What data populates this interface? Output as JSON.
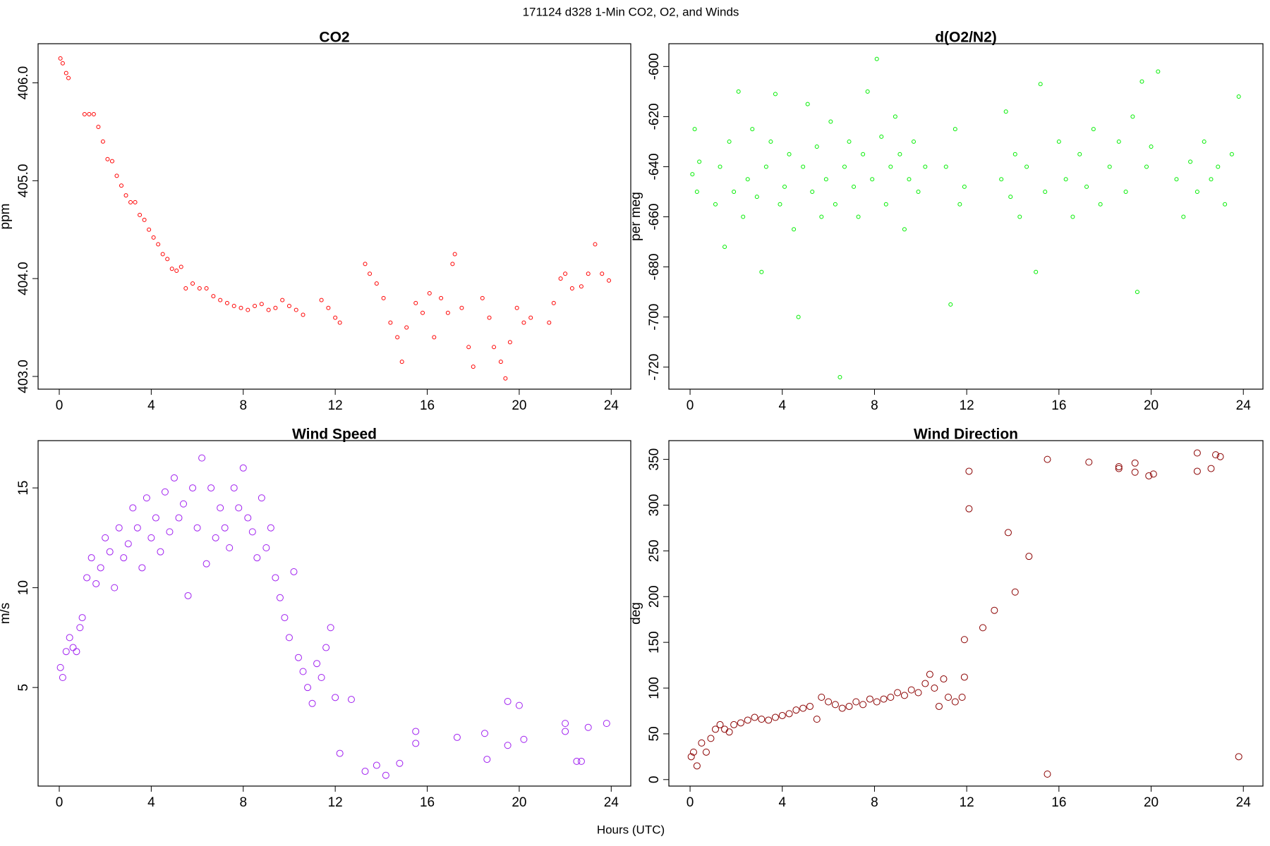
{
  "title": "171124   d328   1-Min CO2, O2, and Winds",
  "xlabel": "Hours (UTC)",
  "chart_data": [
    {
      "type": "scatter",
      "title": "CO2",
      "ylabel": "ppm",
      "color": "#ff0000",
      "xlim": [
        -0.92,
        24.85
      ],
      "xticks": [
        0,
        4,
        8,
        12,
        16,
        20,
        24
      ],
      "ylim": [
        402.87,
        406.4
      ],
      "yticks": [
        {
          "value": 403,
          "label": "403.0"
        },
        {
          "value": 404,
          "label": "404.0"
        },
        {
          "value": 405,
          "label": "405.0"
        },
        {
          "value": 406,
          "label": "406.0"
        }
      ],
      "x": [
        0.05,
        0.15,
        0.3,
        0.4,
        1.1,
        1.3,
        1.5,
        1.7,
        1.9,
        2.1,
        2.3,
        2.5,
        2.7,
        2.9,
        3.1,
        3.3,
        3.5,
        3.7,
        3.9,
        4.1,
        4.3,
        4.5,
        4.7,
        4.9,
        5.1,
        5.3,
        5.5,
        5.8,
        6.1,
        6.4,
        6.7,
        7.0,
        7.3,
        7.6,
        7.9,
        8.2,
        8.5,
        8.8,
        9.1,
        9.4,
        9.7,
        10.0,
        10.3,
        10.6,
        11.4,
        11.7,
        12.0,
        12.2,
        13.3,
        13.5,
        13.8,
        14.1,
        14.4,
        14.7,
        14.9,
        15.1,
        15.5,
        15.8,
        16.1,
        16.3,
        16.6,
        16.9,
        17.1,
        17.2,
        17.5,
        17.8,
        18.0,
        18.4,
        18.7,
        18.9,
        19.2,
        19.4,
        19.6,
        19.9,
        20.2,
        20.5,
        21.3,
        21.5,
        21.8,
        22.0,
        22.3,
        22.7,
        23.0,
        23.3,
        23.6,
        23.9
      ],
      "values": [
        406.25,
        406.2,
        406.1,
        406.05,
        405.68,
        405.68,
        405.68,
        405.55,
        405.4,
        405.22,
        405.2,
        405.05,
        404.95,
        404.85,
        404.78,
        404.78,
        404.65,
        404.6,
        404.5,
        404.42,
        404.35,
        404.25,
        404.2,
        404.1,
        404.08,
        404.12,
        403.9,
        403.95,
        403.9,
        403.9,
        403.82,
        403.78,
        403.75,
        403.72,
        403.7,
        403.68,
        403.72,
        403.74,
        403.68,
        403.7,
        403.78,
        403.72,
        403.68,
        403.63,
        403.78,
        403.7,
        403.6,
        403.55,
        404.15,
        404.05,
        403.95,
        403.8,
        403.55,
        403.4,
        403.15,
        403.5,
        403.75,
        403.65,
        403.85,
        403.4,
        403.8,
        403.65,
        404.15,
        404.25,
        403.7,
        403.3,
        403.1,
        403.8,
        403.6,
        403.3,
        403.15,
        402.98,
        403.35,
        403.7,
        403.55,
        403.6,
        403.55,
        403.75,
        404.0,
        404.05,
        403.9,
        403.92,
        404.05,
        404.35,
        404.05,
        403.98
      ]
    },
    {
      "type": "scatter",
      "title": "d(O2/N2)",
      "ylabel": "per meg",
      "color": "#00ee00",
      "xlim": [
        -0.92,
        24.85
      ],
      "xticks": [
        0,
        4,
        8,
        12,
        16,
        20,
        24
      ],
      "ylim": [
        -728.8,
        -590.9
      ],
      "yticks": [
        -720,
        -700,
        -680,
        -660,
        -640,
        -620,
        -600
      ],
      "x": [
        0.1,
        0.2,
        0.3,
        0.4,
        1.1,
        1.3,
        1.5,
        1.7,
        1.9,
        2.1,
        2.3,
        2.5,
        2.7,
        2.9,
        3.1,
        3.3,
        3.5,
        3.7,
        3.9,
        4.1,
        4.3,
        4.5,
        4.7,
        4.9,
        5.1,
        5.3,
        5.5,
        5.7,
        5.9,
        6.1,
        6.3,
        6.5,
        6.7,
        6.9,
        7.1,
        7.3,
        7.5,
        7.7,
        7.9,
        8.1,
        8.3,
        8.5,
        8.7,
        8.9,
        9.1,
        9.3,
        9.5,
        9.7,
        9.9,
        10.2,
        11.1,
        11.3,
        11.5,
        11.7,
        11.9,
        13.5,
        13.7,
        13.9,
        14.1,
        14.3,
        14.6,
        15.0,
        15.2,
        15.4,
        16.0,
        16.3,
        16.6,
        16.9,
        17.2,
        17.5,
        17.8,
        18.2,
        18.6,
        18.9,
        19.2,
        19.4,
        19.6,
        19.8,
        20.0,
        20.3,
        21.1,
        21.4,
        21.7,
        22.0,
        22.3,
        22.6,
        22.9,
        23.2,
        23.5,
        23.8
      ],
      "values": [
        -643,
        -625,
        -650,
        -638,
        -655,
        -640,
        -672,
        -630,
        -650,
        -610,
        -660,
        -645,
        -625,
        -652,
        -682,
        -640,
        -630,
        -611,
        -655,
        -648,
        -635,
        -665,
        -700,
        -640,
        -615,
        -650,
        -632,
        -660,
        -645,
        -622,
        -655,
        -724,
        -640,
        -630,
        -648,
        -660,
        -635,
        -610,
        -645,
        -597,
        -628,
        -655,
        -640,
        -620,
        -635,
        -665,
        -645,
        -630,
        -650,
        -640,
        -640,
        -695,
        -625,
        -655,
        -648,
        -645,
        -618,
        -652,
        -635,
        -660,
        -640,
        -682,
        -607,
        -650,
        -630,
        -645,
        -660,
        -635,
        -648,
        -625,
        -655,
        -640,
        -630,
        -650,
        -620,
        -690,
        -606,
        -640,
        -632,
        -602,
        -645,
        -660,
        -638,
        -650,
        -630,
        -645,
        -640,
        -655,
        -635,
        -612
      ]
    },
    {
      "type": "scatter",
      "title": "Wind Speed",
      "ylabel": "m/s",
      "color": "#a020f0",
      "xlim": [
        -0.92,
        24.85
      ],
      "xticks": [
        0,
        4,
        8,
        12,
        16,
        20,
        24
      ],
      "ylim": [
        0.06,
        17.37
      ],
      "yticks": [
        5,
        10,
        15
      ],
      "x": [
        0.05,
        0.15,
        0.3,
        0.45,
        0.6,
        0.75,
        0.9,
        1.0,
        1.2,
        1.4,
        1.6,
        1.8,
        2.0,
        2.2,
        2.4,
        2.6,
        2.8,
        3.0,
        3.2,
        3.4,
        3.6,
        3.8,
        4.0,
        4.2,
        4.4,
        4.6,
        4.8,
        5.0,
        5.2,
        5.4,
        5.6,
        5.8,
        6.0,
        6.2,
        6.4,
        6.6,
        6.8,
        7.0,
        7.2,
        7.4,
        7.6,
        7.8,
        8.0,
        8.2,
        8.4,
        8.6,
        8.8,
        9.0,
        9.2,
        9.4,
        9.6,
        9.8,
        10.0,
        10.2,
        10.4,
        10.6,
        10.8,
        11.0,
        11.2,
        11.4,
        11.6,
        11.8,
        12.0,
        12.2,
        12.7,
        13.3,
        13.8,
        14.2,
        14.8,
        15.5,
        15.5,
        17.3,
        18.5,
        18.6,
        19.5,
        19.5,
        20.0,
        20.2,
        22.0,
        22.0,
        22.5,
        22.7,
        23.0,
        23.8
      ],
      "values": [
        6.0,
        5.5,
        6.8,
        7.5,
        7.0,
        6.8,
        8.0,
        8.5,
        10.5,
        11.5,
        10.2,
        11.0,
        12.5,
        11.8,
        10.0,
        13.0,
        11.5,
        12.2,
        14.0,
        13.0,
        11.0,
        14.5,
        12.5,
        13.5,
        11.8,
        14.8,
        12.8,
        15.5,
        13.5,
        14.2,
        9.6,
        15.0,
        13.0,
        16.5,
        11.2,
        15.0,
        12.5,
        14.0,
        13.0,
        12.0,
        15.0,
        14.0,
        16.0,
        13.5,
        12.8,
        11.5,
        14.5,
        12.0,
        13.0,
        10.5,
        9.5,
        8.5,
        7.5,
        10.8,
        6.5,
        5.8,
        5.0,
        4.2,
        6.2,
        5.5,
        7.0,
        8.0,
        4.5,
        1.7,
        4.4,
        0.8,
        1.1,
        0.6,
        1.2,
        2.2,
        2.8,
        2.5,
        2.7,
        1.4,
        2.1,
        4.3,
        4.1,
        2.4,
        2.8,
        3.2,
        1.3,
        1.3,
        3.0,
        3.2
      ]
    },
    {
      "type": "scatter",
      "title": "Wind Direction",
      "ylabel": "deg",
      "color": "#8b0000",
      "xlim": [
        -0.92,
        24.85
      ],
      "xticks": [
        0,
        4,
        8,
        12,
        16,
        20,
        24
      ],
      "ylim": [
        -7.1,
        370.5
      ],
      "yticks": [
        0,
        50,
        100,
        150,
        200,
        250,
        300,
        350
      ],
      "x": [
        0.05,
        0.15,
        0.3,
        0.5,
        0.7,
        0.9,
        1.1,
        1.3,
        1.5,
        1.7,
        1.9,
        2.2,
        2.5,
        2.8,
        3.1,
        3.4,
        3.7,
        4.0,
        4.3,
        4.6,
        4.9,
        5.2,
        5.5,
        5.7,
        6.0,
        6.3,
        6.6,
        6.9,
        7.2,
        7.5,
        7.8,
        8.1,
        8.4,
        8.7,
        9.0,
        9.3,
        9.6,
        9.9,
        10.2,
        10.4,
        10.6,
        10.8,
        11.0,
        11.2,
        11.5,
        11.8,
        11.9,
        11.9,
        12.1,
        12.1,
        12.7,
        13.2,
        13.8,
        14.1,
        14.7,
        15.5,
        15.5,
        17.3,
        18.6,
        18.6,
        19.3,
        19.3,
        19.9,
        20.1,
        22.0,
        22.0,
        22.6,
        22.8,
        23.0,
        23.8
      ],
      "values": [
        25,
        30,
        15,
        40,
        30,
        45,
        55,
        60,
        55,
        52,
        60,
        62,
        65,
        68,
        66,
        65,
        68,
        70,
        72,
        76,
        78,
        80,
        66,
        90,
        85,
        82,
        78,
        80,
        85,
        82,
        88,
        85,
        88,
        90,
        95,
        92,
        98,
        95,
        105,
        115,
        100,
        80,
        110,
        90,
        85,
        90,
        112,
        153,
        337,
        296,
        166,
        185,
        270,
        205,
        244,
        350,
        6,
        347,
        342,
        340,
        346,
        336,
        332,
        334,
        357,
        337,
        340,
        355,
        353,
        25
      ]
    }
  ]
}
